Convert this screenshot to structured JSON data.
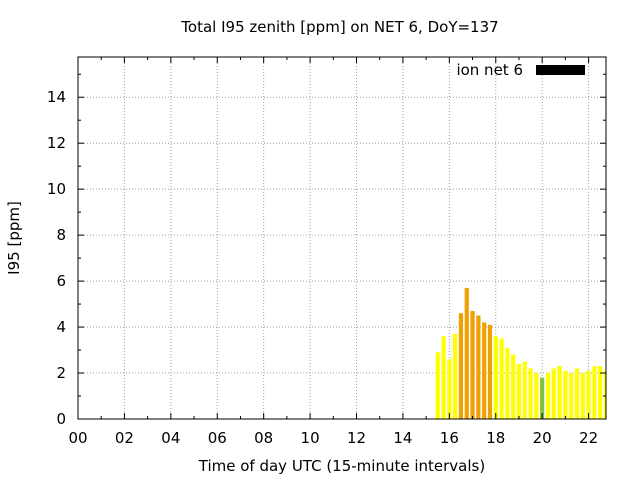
{
  "chart_data": {
    "type": "bar",
    "title": "Total I95 zenith [ppm] on NET 6, DoY=137",
    "xlabel": "Time of day UTC (15-minute intervals)",
    "ylabel": "I95 [ppm]",
    "xlim": [
      0,
      22.75
    ],
    "ylim": [
      0,
      15.75
    ],
    "xticks": [
      "00",
      "02",
      "04",
      "06",
      "08",
      "10",
      "12",
      "14",
      "16",
      "18",
      "20",
      "22"
    ],
    "xtick_values": [
      0,
      2,
      4,
      6,
      8,
      10,
      12,
      14,
      16,
      18,
      20,
      22
    ],
    "yticks": [
      "0",
      "2",
      "4",
      "6",
      "8",
      "10",
      "12",
      "14"
    ],
    "ytick_values": [
      0,
      2,
      4,
      6,
      8,
      10,
      12,
      14
    ],
    "grid": true,
    "legend_position": "top-right",
    "series": [
      {
        "name": "ion net 6",
        "legend_color": "#000000",
        "x": [
          15.5,
          15.75,
          16.0,
          16.25,
          16.5,
          16.75,
          17.0,
          17.25,
          17.5,
          17.75,
          18.0,
          18.25,
          18.5,
          18.75,
          19.0,
          19.25,
          19.5,
          19.75,
          20.0,
          20.25,
          20.5,
          20.75,
          21.0,
          21.25,
          21.5,
          21.75,
          22.0,
          22.25,
          22.5,
          22.75
        ],
        "values": [
          2.9,
          3.6,
          2.6,
          3.7,
          4.6,
          5.7,
          4.7,
          4.5,
          4.2,
          4.1,
          3.6,
          3.5,
          3.1,
          2.8,
          2.4,
          2.5,
          2.2,
          2.0,
          1.8,
          2.0,
          2.2,
          2.3,
          2.1,
          2.0,
          2.2,
          2.0,
          2.1,
          2.3,
          2.3,
          2.1
        ],
        "colors": [
          "#ffff00",
          "#ffff00",
          "#ffff00",
          "#ffff00",
          "#f0a000",
          "#f0a000",
          "#f0a000",
          "#f0a000",
          "#f0a000",
          "#f0a000",
          "#ffff00",
          "#ffff00",
          "#ffff00",
          "#ffff00",
          "#ffff00",
          "#ffff00",
          "#ffff00",
          "#ffff00",
          "#80c040",
          "#ffff00",
          "#ffff00",
          "#ffff00",
          "#ffff00",
          "#ffff00",
          "#ffff00",
          "#ffff00",
          "#ffff00",
          "#ffff00",
          "#ffff00",
          "#ffff00"
        ]
      }
    ]
  }
}
